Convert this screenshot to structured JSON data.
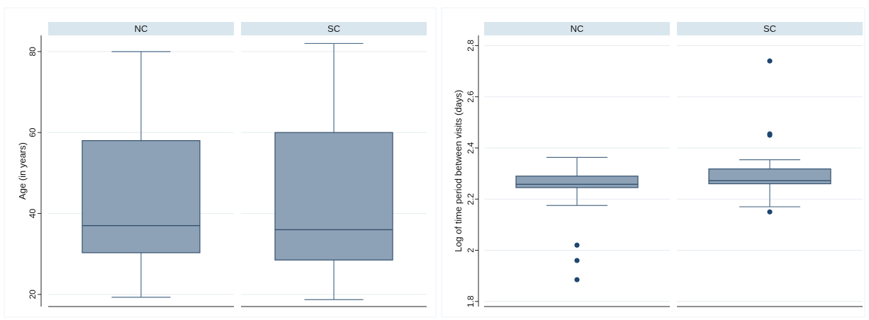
{
  "chart_data": [
    {
      "type": "box",
      "ylabel": "Age (in years)",
      "ylim": [
        17,
        84
      ],
      "yticks": [
        20,
        40,
        60,
        80
      ],
      "ytick_labels": [
        "20",
        "40",
        "60",
        "80"
      ],
      "grid": true,
      "panels": [
        {
          "name": "NC",
          "whisker_low": 19.3,
          "q1": 30.3,
          "median": 37,
          "q3": 58,
          "whisker_high": 80,
          "outliers": []
        },
        {
          "name": "SC",
          "whisker_low": 18.7,
          "q1": 28.5,
          "median": 36,
          "q3": 60,
          "whisker_high": 82,
          "outliers": []
        }
      ]
    },
    {
      "type": "box",
      "ylabel": "Log of time period between visits (days)",
      "ylim": [
        1.78,
        2.84
      ],
      "yticks": [
        1.8,
        2.0,
        2.2,
        2.4,
        2.6,
        2.8
      ],
      "ytick_labels": [
        "1.8",
        "2",
        "2.2",
        "2.4",
        "2.6",
        "2.8"
      ],
      "grid": true,
      "panels": [
        {
          "name": "NC",
          "whisker_low": 2.175,
          "q1": 2.245,
          "median": 2.258,
          "q3": 2.29,
          "whisker_high": 2.363,
          "outliers": [
            2.02,
            1.96,
            1.885
          ]
        },
        {
          "name": "SC",
          "whisker_low": 2.17,
          "q1": 2.26,
          "median": 2.272,
          "q3": 2.318,
          "whisker_high": 2.354,
          "outliers": [
            2.15,
            2.45,
            2.455,
            2.74
          ]
        }
      ]
    }
  ],
  "colors": {
    "box_fill": "#8ea2b7",
    "box_stroke": "#33506c",
    "whisker": "#4f6d89",
    "outlier": "#1f4670",
    "strip_fill": "#d9e6ee",
    "grid": "#e6ecf0",
    "axis": "#222222"
  }
}
